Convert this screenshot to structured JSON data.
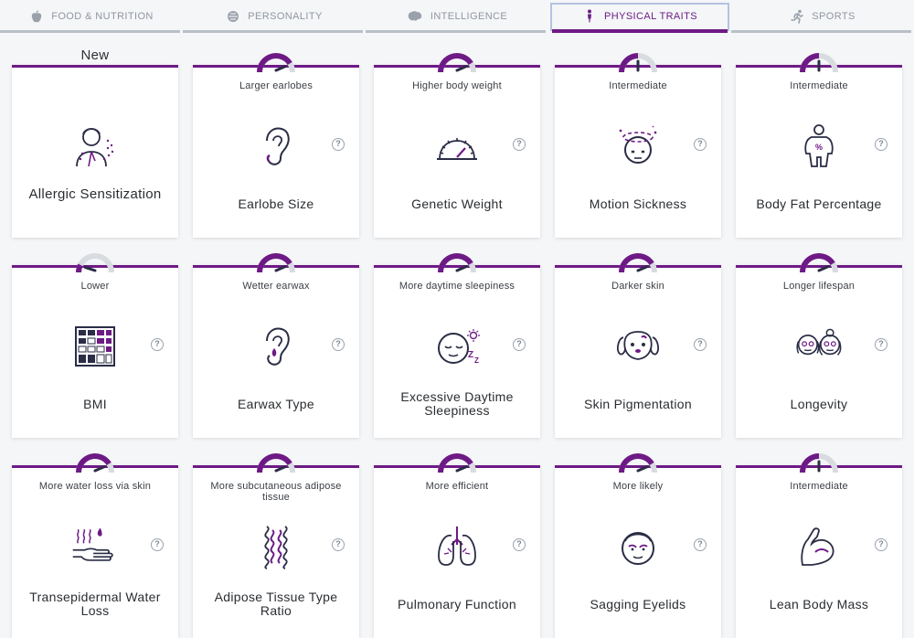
{
  "tabs": [
    {
      "label": "FOOD & NUTRITION",
      "icon": "apple-icon",
      "active": false
    },
    {
      "label": "PERSONALITY",
      "icon": "brain-profile-icon",
      "active": false
    },
    {
      "label": "INTELLIGENCE",
      "icon": "brain-icon",
      "active": false
    },
    {
      "label": "PHYSICAL TRAITS",
      "icon": "person-icon",
      "active": true
    },
    {
      "label": "SPORTS",
      "icon": "runner-icon",
      "active": false
    }
  ],
  "colors": {
    "accent": "#6e1a86",
    "gauge_track": "#d8dce1",
    "icon_dark": "#2a2d45"
  },
  "cards": [
    {
      "badge": "New",
      "status": "",
      "title": "Allergic Sensitization",
      "icon": "allergy-person-icon",
      "level": null
    },
    {
      "status": "Larger earlobes",
      "title": "Earlobe Size",
      "icon": "ear-icon",
      "level": 0.82
    },
    {
      "status": "Higher body weight",
      "title": "Genetic Weight",
      "icon": "scale-gauge-icon",
      "level": 0.82
    },
    {
      "status": "Intermediate",
      "title": "Motion Sickness",
      "icon": "dizzy-head-icon",
      "level": 0.5
    },
    {
      "status": "Intermediate",
      "title": "Body Fat Percentage",
      "icon": "body-fat-icon",
      "level": 0.5
    },
    {
      "status": "Lower",
      "title": "BMI",
      "icon": "bmi-chart-icon",
      "level": 0.15
    },
    {
      "status": "Wetter earwax",
      "title": "Earwax Type",
      "icon": "earwax-icon",
      "level": 0.82
    },
    {
      "status": "More daytime sleepiness",
      "title": "Excessive Daytime Sleepiness",
      "icon": "sleepy-face-icon",
      "level": 0.82
    },
    {
      "status": "Darker skin",
      "title": "Skin Pigmentation",
      "icon": "dog-face-icon",
      "level": 0.82
    },
    {
      "status": "Longer lifespan",
      "title": "Longevity",
      "icon": "elderly-couple-icon",
      "level": 0.82
    },
    {
      "status": "More water loss via skin",
      "title": "Transepidermal Water Loss",
      "icon": "hand-water-icon",
      "level": 0.82
    },
    {
      "status": "More subcutaneous adipose tissue",
      "title": "Adipose Tissue Type Ratio",
      "icon": "adipose-tissue-icon",
      "level": 0.82
    },
    {
      "status": "More efficient",
      "title": "Pulmonary Function",
      "icon": "lungs-icon",
      "level": 0.82
    },
    {
      "status": "More likely",
      "title": "Sagging Eyelids",
      "icon": "sagging-eyelids-face-icon",
      "level": 0.82
    },
    {
      "status": "Intermediate",
      "title": "Lean Body Mass",
      "icon": "flexed-arm-icon",
      "level": 0.5
    }
  ],
  "help_label": "?"
}
